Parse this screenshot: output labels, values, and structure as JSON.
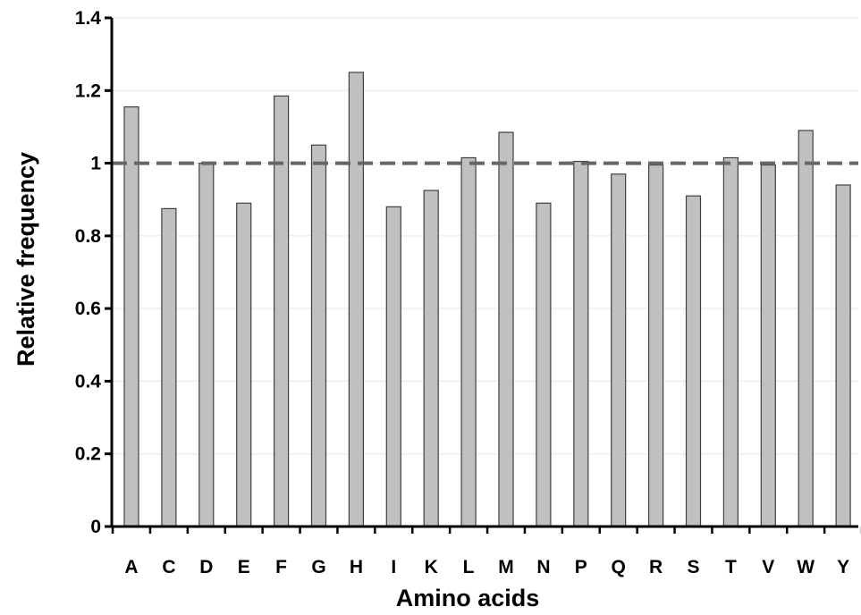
{
  "chart_data": {
    "type": "bar",
    "title": "",
    "xlabel": "Amino acids",
    "ylabel": "Relative frequency",
    "ylim": [
      0,
      1.4
    ],
    "yticks": [
      "0",
      "0.2",
      "0.4",
      "0.6",
      "0.8",
      "1",
      "1.2",
      "1.4"
    ],
    "categories": [
      "A",
      "C",
      "D",
      "E",
      "F",
      "G",
      "H",
      "I",
      "K",
      "L",
      "M",
      "N",
      "P",
      "Q",
      "R",
      "S",
      "T",
      "V",
      "W",
      "Y"
    ],
    "values": [
      1.155,
      0.875,
      1.0,
      0.89,
      1.185,
      1.05,
      1.25,
      0.88,
      0.925,
      1.015,
      1.085,
      0.89,
      1.005,
      0.97,
      0.995,
      0.91,
      1.015,
      0.995,
      1.09,
      0.94
    ],
    "reference_line": {
      "y": 1.0,
      "style": "dashed"
    },
    "grid": true,
    "bar_color": "#c0c0c0",
    "bar_edge_color": "#404040",
    "reference_line_color": "#666666",
    "grid_color": "#e6e6e6"
  }
}
